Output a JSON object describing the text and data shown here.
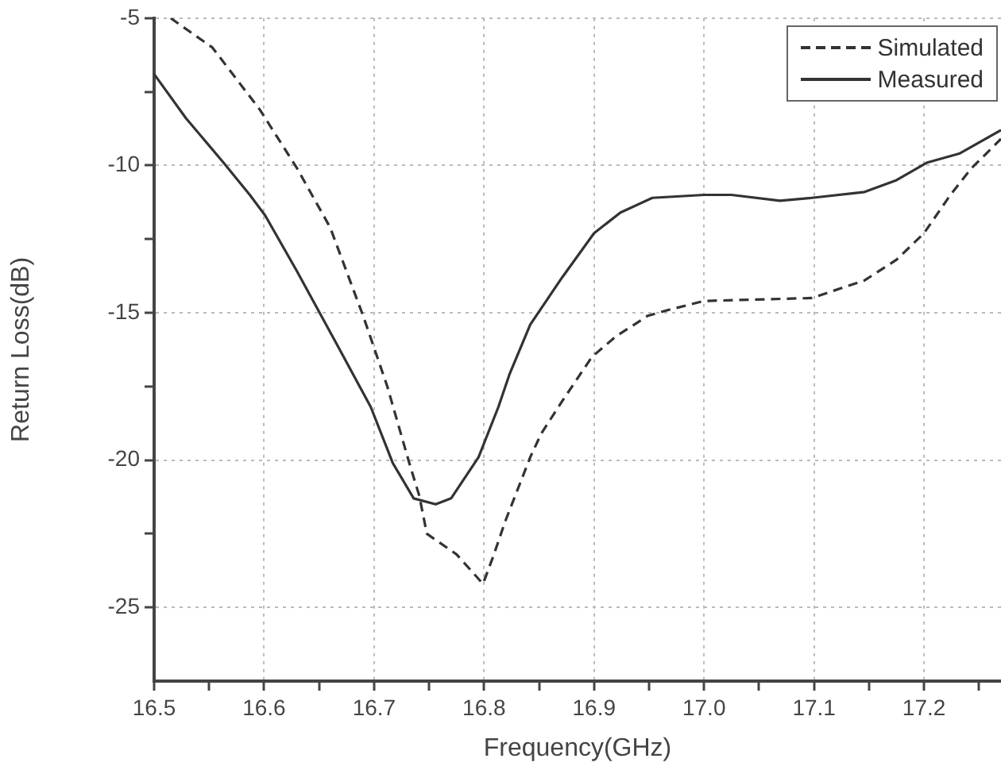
{
  "chart_data": {
    "type": "line",
    "xlabel": "Frequency(GHz)",
    "ylabel": "Return Loss(dB)",
    "xlim": [
      16.5,
      17.27
    ],
    "ylim": [
      -27.5,
      -5
    ],
    "xticks": [
      16.5,
      {
        "value": 16.55,
        "label": null
      },
      16.6,
      {
        "value": 16.65,
        "label": null
      },
      16.7,
      {
        "value": 16.75,
        "label": null
      },
      16.8,
      {
        "value": 16.85,
        "label": null
      },
      16.9,
      {
        "value": 16.95,
        "label": null
      },
      {
        "value": 17,
        "label": "17.0"
      },
      {
        "value": 17.05,
        "label": null
      },
      17.1,
      {
        "value": 17.15,
        "label": null
      },
      17.2,
      {
        "value": 17.25,
        "label": null
      }
    ],
    "yticks": [
      -5,
      {
        "value": -7.5,
        "label": null
      },
      -10,
      {
        "value": -12.5,
        "label": null
      },
      -15,
      {
        "value": -17.5,
        "label": null
      },
      -20,
      {
        "value": -22.5,
        "label": null
      },
      -25
    ],
    "grid": true,
    "legend": "top right",
    "marker": "none",
    "series": [
      {
        "name": "Simulated",
        "color": "#333333",
        "line_style": "dashed",
        "x": [
          16.515,
          16.553,
          16.596,
          16.63,
          16.66,
          16.69,
          16.712,
          16.732,
          16.741,
          16.748,
          16.775,
          16.799,
          16.809,
          16.819,
          16.842,
          16.852,
          16.871,
          16.898,
          16.92,
          16.949,
          16.968,
          17.0,
          17.098,
          17.146,
          17.175,
          17.2,
          17.224,
          17.243,
          17.27
        ],
        "values": [
          -5.0,
          -6.0,
          -8.1,
          -10.1,
          -12.1,
          -15.1,
          -17.5,
          -20.1,
          -21.2,
          -22.5,
          -23.2,
          -24.2,
          -23.2,
          -22.1,
          -19.9,
          -19.1,
          -18.0,
          -16.5,
          -15.8,
          -15.1,
          -14.9,
          -14.6,
          -14.5,
          -13.9,
          -13.2,
          -12.3,
          -11.0,
          -10.1,
          -9.1
        ]
      },
      {
        "name": "Measured",
        "color": "#333333",
        "line_style": "solid",
        "x": [
          16.5,
          16.529,
          16.563,
          16.587,
          16.601,
          16.63,
          16.668,
          16.697,
          16.717,
          16.736,
          16.756,
          16.77,
          16.795,
          16.813,
          16.823,
          16.842,
          16.871,
          16.9,
          16.924,
          16.953,
          17.0,
          17.025,
          17.069,
          17.098,
          17.146,
          17.175,
          17.203,
          17.232,
          17.27
        ],
        "values": [
          -6.9,
          -8.4,
          -9.9,
          -11.0,
          -11.7,
          -13.6,
          -16.2,
          -18.2,
          -20.1,
          -21.3,
          -21.5,
          -21.3,
          -19.9,
          -18.2,
          -17.1,
          -15.4,
          -13.8,
          -12.3,
          -11.6,
          -11.1,
          -11.0,
          -11.0,
          -11.2,
          -11.1,
          -10.9,
          -10.5,
          -9.9,
          -9.6,
          -8.8
        ]
      }
    ]
  }
}
